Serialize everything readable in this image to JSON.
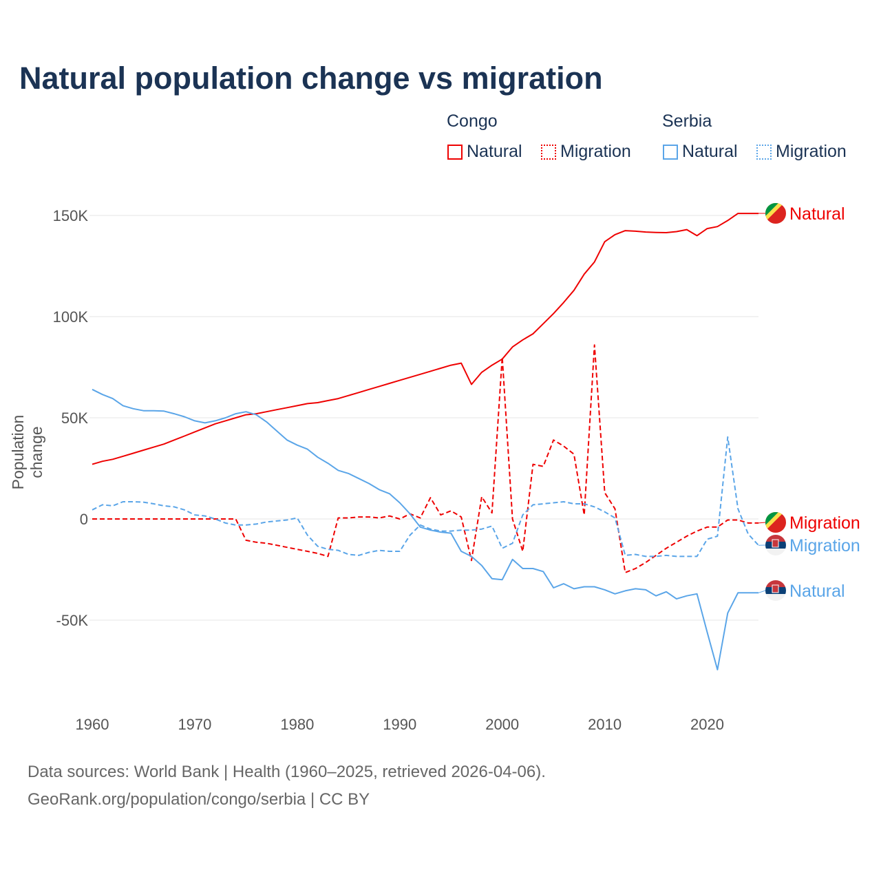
{
  "title": "Natural population change vs migration",
  "legend": {
    "groups": [
      {
        "name": "Congo",
        "items": [
          "Natural",
          "Migration"
        ],
        "color": "#ee0000"
      },
      {
        "name": "Serbia",
        "items": [
          "Natural",
          "Migration"
        ],
        "color": "#5aa5e8"
      }
    ]
  },
  "footer": {
    "line1": "Data sources: World Bank | Health (1960–2025, retrieved 2026-04-06).",
    "line2": "GeoRank.org/population/congo/serbia | CC BY"
  },
  "chart_data": {
    "type": "line",
    "title": "Natural population change vs migration",
    "xlabel": "",
    "ylabel": "Population change",
    "xlim": [
      1960,
      2025
    ],
    "ylim": [
      -85000,
      165000
    ],
    "x_ticks": [
      1960,
      1970,
      1980,
      1990,
      2000,
      2010,
      2020
    ],
    "y_ticks": [
      {
        "v": -50000,
        "label": "-50K"
      },
      {
        "v": 0,
        "label": "0"
      },
      {
        "v": 50000,
        "label": "50K"
      },
      {
        "v": 100000,
        "label": "100K"
      },
      {
        "v": 150000,
        "label": "150K"
      }
    ],
    "grid": true,
    "legend_position": "top-right",
    "x_start": 1960,
    "series": [
      {
        "name": "Congo Natural",
        "end_label": "Natural",
        "country": "congo",
        "color": "#ee0000",
        "dash": false,
        "values_k": [
          27,
          28.5,
          29.5,
          31,
          32.5,
          34,
          35.5,
          37,
          39,
          41,
          43,
          45,
          47,
          48.5,
          50,
          51.5,
          52,
          53,
          54,
          55,
          56,
          57,
          57.5,
          58.5,
          59.5,
          61,
          62.5,
          64,
          65.5,
          67,
          68.5,
          70,
          71.5,
          73,
          74.5,
          76,
          77,
          66.5,
          72.5,
          76,
          79,
          85,
          88.5,
          91.5,
          96.5,
          101.5,
          107,
          113,
          121,
          127,
          137,
          140.5,
          142.5,
          142.2,
          141.8,
          141.6,
          141.5,
          142,
          143,
          140,
          143.5,
          144.5,
          147.5,
          151,
          151,
          151
        ]
      },
      {
        "name": "Congo Migration",
        "end_label": "Migration",
        "country": "congo",
        "color": "#ee0000",
        "dash": true,
        "values_k": [
          0,
          0,
          0,
          0,
          0,
          0,
          0,
          0,
          0,
          0,
          0,
          0,
          0,
          0,
          0,
          -10.5,
          -11.5,
          -12,
          -13,
          -14,
          -15,
          -16,
          -17,
          -18.5,
          0.5,
          0.5,
          1,
          1,
          0.5,
          1.5,
          0,
          2.5,
          0.5,
          10.5,
          2,
          4,
          1,
          -20.5,
          11,
          3,
          80,
          0,
          -16,
          27,
          26,
          39,
          36,
          32,
          2,
          86,
          13,
          5,
          -26.5,
          -24.5,
          -21.5,
          -18,
          -14.5,
          -11.5,
          -8.5,
          -6,
          -4,
          -4,
          -0.5,
          -0.5,
          -2,
          -2
        ]
      },
      {
        "name": "Serbia Natural",
        "end_label": "Natural",
        "country": "serbia",
        "color": "#5aa5e8",
        "dash": false,
        "values_k": [
          64,
          61.5,
          59.5,
          56,
          54.5,
          53.5,
          53.5,
          53.3,
          52,
          50.5,
          48.5,
          47.5,
          48.5,
          50,
          52,
          53,
          51.5,
          48,
          43.5,
          39,
          36.5,
          34.5,
          30.5,
          27.5,
          24,
          22.5,
          20,
          17.5,
          14.5,
          12.5,
          8,
          2.5,
          -4,
          -5.5,
          -6.5,
          -7,
          -16,
          -18.5,
          -23,
          -29.5,
          -30,
          -20,
          -24.5,
          -24.5,
          -26,
          -34,
          -32,
          -34.5,
          -33.5,
          -33.5,
          -35,
          -37,
          -35.5,
          -34.5,
          -35,
          -38,
          -36,
          -39.5,
          -38,
          -37,
          -56,
          -74.5,
          -46.5,
          -36.5,
          -36.5,
          -36.5
        ]
      },
      {
        "name": "Serbia Migration",
        "end_label": "Migration",
        "country": "serbia",
        "color": "#5aa5e8",
        "dash": true,
        "values_k": [
          4.5,
          7,
          6.5,
          8.5,
          8.5,
          8.3,
          7.5,
          6.5,
          6,
          4.5,
          2,
          1.5,
          0,
          -2,
          -3,
          -3,
          -2.5,
          -1.5,
          -1,
          -0.5,
          0.5,
          -8,
          -13.5,
          -15,
          -15.5,
          -17.5,
          -18,
          -16.5,
          -15.5,
          -16,
          -16,
          -8,
          -3,
          -5,
          -6,
          -6,
          -5.5,
          -5.5,
          -5,
          -3.5,
          -14.5,
          -12,
          2,
          7,
          7.5,
          8,
          8.5,
          7.5,
          7.5,
          6,
          3.5,
          0.5,
          -18,
          -17.5,
          -18.5,
          -18.5,
          -18,
          -18.5,
          -18.5,
          -18.5,
          -10,
          -8.5,
          40.5,
          5,
          -7.5,
          -13
        ]
      }
    ]
  }
}
